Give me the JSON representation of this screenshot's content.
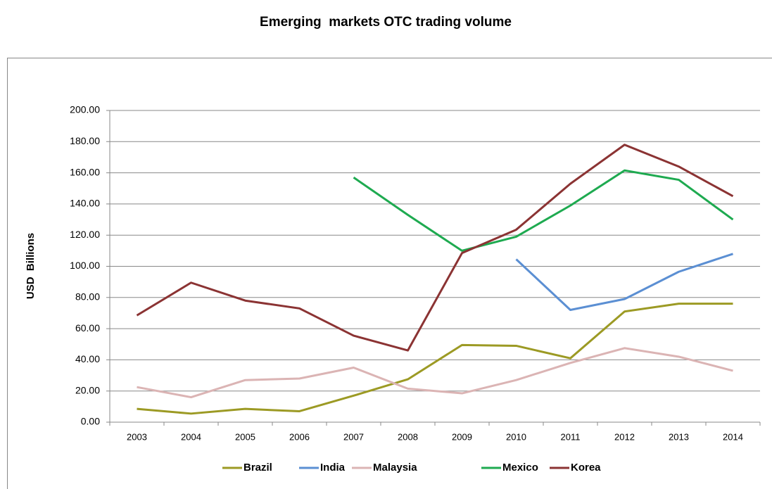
{
  "chart_data": {
    "type": "line",
    "title": "Emerging  markets OTC trading volume",
    "ylabel": "USD  Billions",
    "categories": [
      "2003",
      "2004",
      "2005",
      "2006",
      "2007",
      "2008",
      "2009",
      "2010",
      "2011",
      "2012",
      "2013",
      "2014"
    ],
    "ylim": [
      0,
      200
    ],
    "yticks": [
      {
        "value": 0,
        "label": "0.00"
      },
      {
        "value": 20,
        "label": "20.00"
      },
      {
        "value": 40,
        "label": "40.00"
      },
      {
        "value": 60,
        "label": "60.00"
      },
      {
        "value": 80,
        "label": "80.00"
      },
      {
        "value": 100,
        "label": "100.00"
      },
      {
        "value": 120,
        "label": "120.00"
      },
      {
        "value": 140,
        "label": "140.00"
      },
      {
        "value": 160,
        "label": "160.00"
      },
      {
        "value": 180,
        "label": "180.00"
      },
      {
        "value": 200,
        "label": "200.00"
      }
    ],
    "grid": true,
    "legend": "bottom",
    "series": [
      {
        "name": "Brazil",
        "color": "#9c9a24",
        "values": [
          8.5,
          5.5,
          8.5,
          7,
          17,
          27.5,
          49.5,
          49,
          41,
          71,
          76,
          76
        ]
      },
      {
        "name": "India",
        "color": "#5b8fd3",
        "values": [
          null,
          null,
          null,
          null,
          null,
          null,
          null,
          104.5,
          72,
          79,
          96.5,
          108
        ]
      },
      {
        "name": "Malaysia",
        "color": "#dbb4b4",
        "values": [
          22.5,
          16,
          27,
          28,
          35,
          21.5,
          18.5,
          27,
          38,
          47.5,
          42,
          33
        ]
      },
      {
        "name": "Mexico",
        "color": "#1eaa50",
        "values": [
          null,
          null,
          null,
          null,
          157,
          133,
          110,
          119,
          139,
          161.5,
          155.5,
          130
        ]
      },
      {
        "name": "Korea",
        "color": "#8b3333",
        "values": [
          68.5,
          89.5,
          78,
          73,
          55.5,
          46,
          108.5,
          123.5,
          153,
          178,
          164,
          145
        ]
      }
    ]
  }
}
